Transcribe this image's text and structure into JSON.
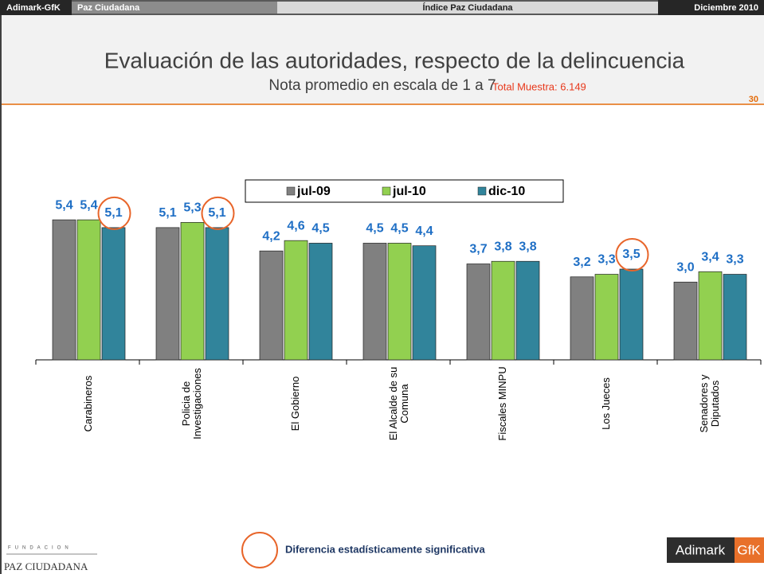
{
  "header": {
    "brand": "Adimark-GfK",
    "project": "Paz Ciudadana",
    "study": "Índice Paz Ciudadana",
    "date": "Diciembre 2010",
    "title": "Evaluación de las autoridades, respecto de la delincuencia",
    "subtitle": "Nota promedio en escala de 1 a 7",
    "sample": "Total Muestra: 6.149",
    "page": "30"
  },
  "chart_data": {
    "type": "bar",
    "categories": [
      "Carabineros",
      "Policia de Investigaciones",
      "El Gobierno",
      "El Alcalde de su Comuna",
      "Fiscales MINPU",
      "Los Jueces",
      "Senadores y Diputados"
    ],
    "series": [
      {
        "name": "jul-09",
        "color": "#808080",
        "values": [
          5.4,
          5.1,
          4.2,
          4.5,
          3.7,
          3.2,
          3.0
        ],
        "value_labels": [
          "5,4",
          "5,1",
          "4,2",
          "4,5",
          "3,7",
          "3,2",
          "3,0"
        ]
      },
      {
        "name": "jul-10",
        "color": "#92d050",
        "values": [
          5.4,
          5.3,
          4.6,
          4.5,
          3.8,
          3.3,
          3.4
        ],
        "value_labels": [
          "5,4",
          "5,3",
          "4,6",
          "4,5",
          "3,8",
          "3,3",
          "3,4"
        ]
      },
      {
        "name": "dic-10",
        "color": "#31849b",
        "values": [
          5.1,
          5.1,
          4.5,
          4.4,
          3.8,
          3.5,
          3.3
        ],
        "value_labels": [
          "5,1",
          "5,1",
          "4,5",
          "4,4",
          "3,8",
          "3,5",
          "3,3"
        ],
        "significant": [
          true,
          true,
          false,
          false,
          false,
          true,
          false
        ]
      }
    ],
    "ylim": [
      0,
      7
    ],
    "legend": "top",
    "significance_note": "Diferencia estadísticamente significativa"
  },
  "footer": {
    "foundation_top": "FUNDACION",
    "foundation_name": "PAZ CIUDADANA",
    "logo_left": "Adimark",
    "logo_right": "GfK"
  }
}
